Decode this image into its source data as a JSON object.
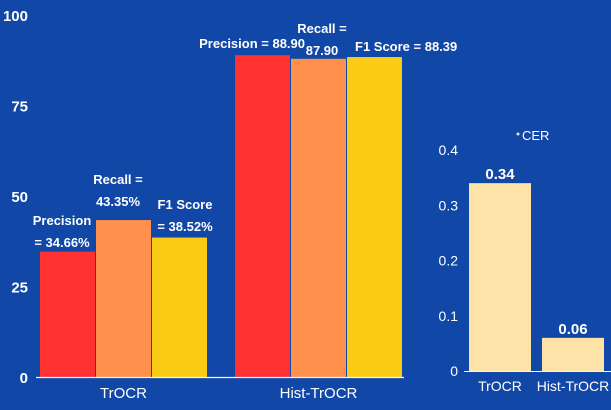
{
  "colors": {
    "background": "#1147a6",
    "axis": "#f2f6ff",
    "text": "#ffffff",
    "precision": "#ff3131",
    "recall": "#ff914d",
    "f1": "#f9cb14",
    "cer": "#fde3a7"
  },
  "chart_data": [
    {
      "type": "bar",
      "categories": [
        "TrOCR",
        "Hist-TrOCR"
      ],
      "series": [
        {
          "name": "Precision",
          "values": [
            34.66,
            88.9
          ]
        },
        {
          "name": "Recall",
          "values": [
            43.35,
            87.9
          ]
        },
        {
          "name": "F1 Score",
          "values": [
            38.52,
            88.39
          ]
        }
      ],
      "data_labels": [
        [
          "Precision\n= 34.66%",
          "Recall =\n43.35%",
          "F1 Score\n= 38.52%"
        ],
        [
          "Precision = 88.90",
          "Recall =\n87.90",
          "F1 Score = 88.39"
        ]
      ],
      "yticks": [
        "0",
        "25",
        "50",
        "75",
        "100"
      ],
      "ylim": [
        0,
        100
      ],
      "title": "",
      "xlabel": "",
      "ylabel": "",
      "grid": false
    },
    {
      "type": "bar",
      "categories": [
        "TrOCR",
        "Hist-TrOCR"
      ],
      "series": [
        {
          "name": "CER",
          "values": [
            0.34,
            0.06
          ]
        }
      ],
      "data_labels": [
        "0.34",
        "0.06"
      ],
      "legend_label": "CER",
      "yticks": [
        "0",
        "0.1",
        "0.2",
        "0.3",
        "0.4"
      ],
      "ylim": [
        0,
        0.4
      ],
      "legend": "top",
      "title": "",
      "xlabel": "",
      "ylabel": "",
      "grid": false
    }
  ]
}
